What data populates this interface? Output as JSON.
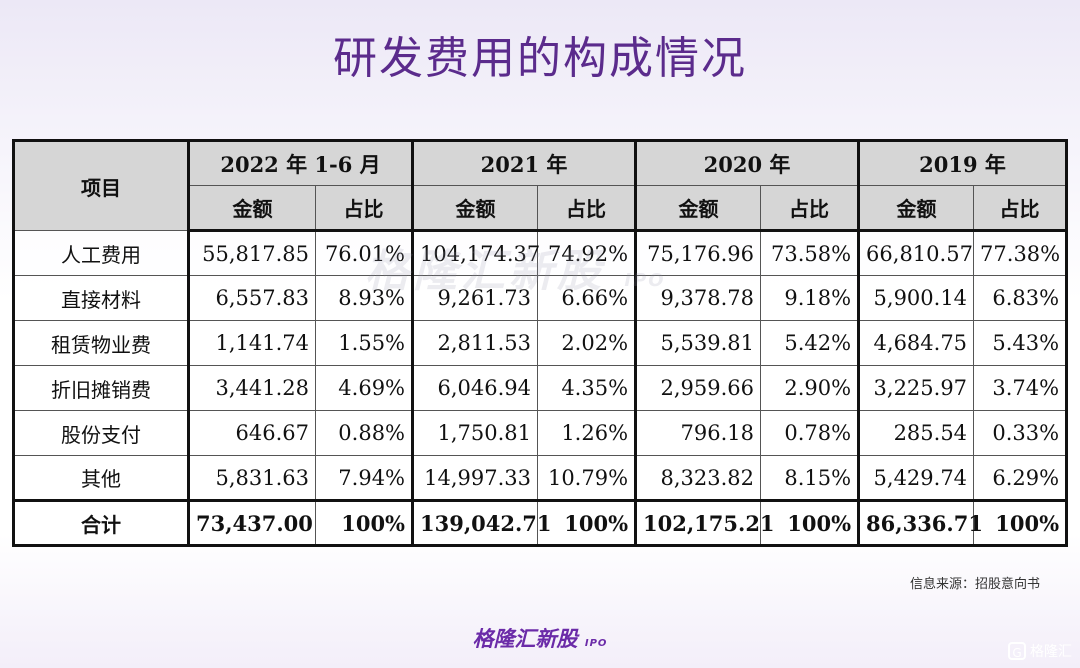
{
  "title": "研发费用的构成情况",
  "table": {
    "item_header": "项目",
    "periods": [
      "2022 年 1-6 月",
      "2021 年",
      "2020 年",
      "2019 年"
    ],
    "sub_headers": [
      "金额",
      "占比"
    ],
    "rows": [
      {
        "label": "人工费用",
        "cells": [
          "55,817.85",
          "76.01%",
          "104,174.37",
          "74.92%",
          "75,176.96",
          "73.58%",
          "66,810.57",
          "77.38%"
        ]
      },
      {
        "label": "直接材料",
        "cells": [
          "6,557.83",
          "8.93%",
          "9,261.73",
          "6.66%",
          "9,378.78",
          "9.18%",
          "5,900.14",
          "6.83%"
        ]
      },
      {
        "label": "租赁物业费",
        "cells": [
          "1,141.74",
          "1.55%",
          "2,811.53",
          "2.02%",
          "5,539.81",
          "5.42%",
          "4,684.75",
          "5.43%"
        ]
      },
      {
        "label": "折旧摊销费",
        "cells": [
          "3,441.28",
          "4.69%",
          "6,046.94",
          "4.35%",
          "2,959.66",
          "2.90%",
          "3,225.97",
          "3.74%"
        ]
      },
      {
        "label": "股份支付",
        "cells": [
          "646.67",
          "0.88%",
          "1,750.81",
          "1.26%",
          "796.18",
          "0.78%",
          "285.54",
          "0.33%"
        ]
      },
      {
        "label": "其他",
        "cells": [
          "5,831.63",
          "7.94%",
          "14,997.33",
          "10.79%",
          "8,323.82",
          "8.15%",
          "5,429.74",
          "6.29%"
        ]
      }
    ],
    "total": {
      "label": "合计",
      "cells": [
        "73,437.00",
        "100%",
        "139,042.71",
        "100%",
        "102,175.21",
        "100%",
        "86,336.71",
        "100%"
      ]
    }
  },
  "watermark": {
    "text": "格隆汇新股",
    "sub": "IPO"
  },
  "source": "信息来源：招股意向书",
  "logo": {
    "text": "格隆汇新股",
    "sub": "IPO"
  },
  "badge": {
    "glyph": "G",
    "text": "格隆汇"
  },
  "colors": {
    "title": "#5b2b8c",
    "header_bg": "#d6d6d6",
    "logo": "#6b2ba8"
  }
}
